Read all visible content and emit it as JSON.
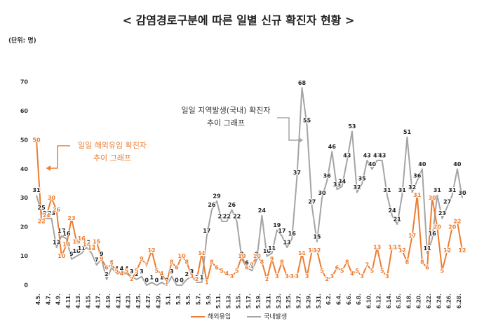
{
  "chart_data": {
    "type": "line",
    "title": "< 감염경로구분에 따른 일별  신규 확진자 현황 >",
    "unit_label": "(단위: 명)",
    "categories": [
      "4.5.",
      null,
      "4.7.",
      null,
      "4.9.",
      null,
      "4.11.",
      null,
      "4.13.",
      null,
      "4.15.",
      null,
      "4.17.",
      null,
      "4.19.",
      null,
      "4.21.",
      null,
      "4.23.",
      null,
      "4.25.",
      null,
      "4.27.",
      null,
      "4.29.",
      null,
      "5.1.",
      null,
      "5.3.",
      null,
      "5.5.",
      null,
      "5.7.",
      null,
      "5.9.",
      null,
      "5.11.",
      null,
      "5.13.",
      null,
      "5.15.",
      null,
      "5.17.",
      null,
      "5.19.",
      null,
      "5.21.",
      null,
      "5.23.",
      null,
      "5.25.",
      null,
      "5.27.",
      null,
      "5.29.",
      null,
      "5.31.",
      null,
      "6.2.",
      null,
      "6.4.",
      null,
      "6.6.",
      null,
      "6.8.",
      null,
      "6.10.",
      null,
      "6.12.",
      null,
      "6.14.",
      null,
      "6.16.",
      null,
      "6.18.",
      null,
      "6.20.",
      null,
      "6.22.",
      null,
      "6.24.",
      null,
      "6.26.",
      null,
      "6.28.",
      null
    ],
    "series": [
      {
        "name": "해외유입",
        "color": "#ed7d31",
        "values": [
          50,
          22,
          24,
          30,
          26,
          10,
          14,
          23,
          15,
          16,
          14,
          13,
          15,
          9,
          6,
          7,
          5,
          4,
          5,
          2,
          5,
          9,
          7,
          12,
          5,
          4,
          1,
          8,
          6,
          10,
          8,
          3,
          2,
          11,
          1,
          8,
          6,
          5,
          4,
          3,
          5,
          10,
          6,
          7,
          10,
          8,
          2,
          9,
          3,
          8,
          3,
          3,
          3,
          11,
          3,
          12,
          12,
          5,
          2,
          3,
          6,
          5,
          8,
          4,
          5,
          3,
          7,
          5,
          13,
          5,
          3,
          13,
          13,
          12,
          8,
          17,
          31,
          8,
          6,
          30,
          20,
          5,
          12,
          20,
          22,
          12
        ]
      },
      {
        "name": "국내발생",
        "color": "#a5a5a5",
        "values": [
          31,
          25,
          23,
          23,
          13,
          17,
          16,
          9,
          10,
          11,
          13,
          11,
          7,
          9,
          2,
          6,
          4,
          4,
          4,
          3,
          2,
          3,
          0,
          1,
          0,
          1,
          0,
          3,
          0,
          0,
          2,
          3,
          1,
          1,
          17,
          26,
          29,
          22,
          22,
          26,
          22,
          9,
          6,
          5,
          9,
          24,
          10,
          11,
          19,
          17,
          13,
          16,
          37,
          68,
          55,
          27,
          15,
          30,
          36,
          46,
          33,
          34,
          43,
          53,
          32,
          35,
          43,
          40,
          43,
          43,
          31,
          24,
          21,
          31,
          51,
          32,
          36,
          40,
          11,
          16,
          31,
          23,
          27,
          31,
          40,
          30
        ]
      }
    ],
    "annotations": [
      {
        "lines": [
          "일일 해외유입 확진자",
          "추이 그래프"
        ]
      },
      {
        "lines": [
          "일일 지역발생(국내) 확진자",
          "추이 그래프"
        ]
      }
    ],
    "ylim": [
      0,
      70
    ],
    "yticks": [
      0,
      10,
      20,
      30,
      40,
      50,
      60,
      70
    ],
    "grid": false,
    "legend": "bottom"
  }
}
